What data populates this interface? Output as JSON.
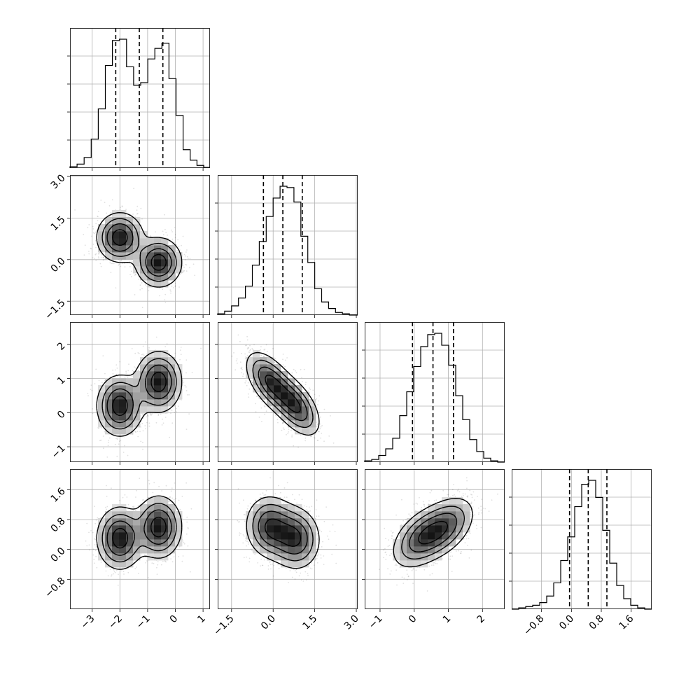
{
  "chart_data": {
    "type": "corner",
    "dimensions": 4,
    "ticks": {
      "d0": [
        "−3",
        "−2",
        "−1",
        "0",
        "1"
      ],
      "d1": [
        "−1.5",
        "0.0",
        "1.5",
        "3.0"
      ],
      "d2": [
        "−1",
        "0",
        "1",
        "2"
      ],
      "d3": [
        "−0.8",
        "0.0",
        "0.8",
        "1.6"
      ]
    },
    "tick_values": {
      "d0": [
        -3,
        -2,
        -1,
        0,
        1
      ],
      "d1": [
        -1.5,
        0.0,
        1.5,
        3.0
      ],
      "d2": [
        -1,
        0,
        1,
        2
      ],
      "d3": [
        -0.8,
        0.0,
        0.8,
        1.6
      ]
    },
    "ranges": {
      "d0": [
        -3.8,
        1.25
      ],
      "d1": [
        -2.0,
        3.05
      ],
      "d2": [
        -1.45,
        2.65
      ],
      "d3": [
        -1.6,
        2.15
      ]
    },
    "quantiles": {
      "d0": [
        -2.15,
        -1.3,
        -0.45
      ],
      "d1": [
        -0.35,
        0.35,
        1.05
      ],
      "d2": [
        -0.05,
        0.55,
        1.15
      ],
      "d3": [
        -0.05,
        0.45,
        0.95
      ]
    },
    "histograms": {
      "d0": {
        "edges": [
          -3.8,
          -3.545,
          -3.29,
          -3.035,
          -2.78,
          -2.525,
          -2.27,
          -2.015,
          -1.76,
          -1.505,
          -1.25,
          -0.995,
          -0.74,
          -0.485,
          -0.23,
          0.025,
          0.28,
          0.535,
          0.78,
          1.025,
          1.25
        ],
        "counts": [
          0.01,
          0.03,
          0.08,
          0.22,
          0.45,
          0.78,
          0.97,
          0.98,
          0.77,
          0.63,
          0.65,
          0.83,
          0.91,
          0.95,
          0.68,
          0.4,
          0.14,
          0.06,
          0.02,
          0.005
        ]
      },
      "d1": {
        "edges": [
          -2.0,
          -1.75,
          -1.5,
          -1.25,
          -1.0,
          -0.75,
          -0.5,
          -0.25,
          0.0,
          0.25,
          0.5,
          0.75,
          1.0,
          1.25,
          1.5,
          1.75,
          2.0,
          2.25,
          2.5,
          2.75,
          3.05
        ],
        "counts": [
          0.01,
          0.03,
          0.07,
          0.13,
          0.22,
          0.38,
          0.56,
          0.75,
          0.89,
          0.98,
          0.97,
          0.86,
          0.6,
          0.4,
          0.2,
          0.1,
          0.05,
          0.02,
          0.01,
          0.0
        ]
      },
      "d2": {
        "edges": [
          -1.45,
          -1.245,
          -1.04,
          -0.835,
          -0.63,
          -0.425,
          -0.22,
          -0.015,
          0.19,
          0.395,
          0.6,
          0.805,
          1.01,
          1.215,
          1.42,
          1.625,
          1.83,
          2.035,
          2.24,
          2.445,
          2.65
        ],
        "counts": [
          0.01,
          0.02,
          0.05,
          0.1,
          0.18,
          0.35,
          0.53,
          0.72,
          0.87,
          0.96,
          0.97,
          0.88,
          0.73,
          0.5,
          0.32,
          0.17,
          0.08,
          0.03,
          0.01,
          0.0
        ]
      },
      "d3": {
        "edges": [
          -1.6,
          -1.4125,
          -1.225,
          -1.0375,
          -0.85,
          -0.6625,
          -0.475,
          -0.2875,
          -0.1,
          0.0875,
          0.275,
          0.4625,
          0.65,
          0.8375,
          1.025,
          1.2125,
          1.4,
          1.5875,
          1.775,
          1.9625,
          2.15
        ],
        "counts": [
          0.0,
          0.01,
          0.02,
          0.03,
          0.05,
          0.1,
          0.2,
          0.37,
          0.55,
          0.78,
          0.95,
          0.98,
          0.85,
          0.6,
          0.35,
          0.18,
          0.08,
          0.03,
          0.01,
          0.0
        ]
      }
    },
    "components": [
      {
        "weight": 0.5,
        "mean": [
          -2.0,
          0.8,
          0.2,
          0.3
        ],
        "sd": [
          0.42,
          0.45,
          0.45,
          0.42
        ],
        "corr_12": 0.1,
        "corr_13": 0.05,
        "corr_23": 0.05
      },
      {
        "weight": 0.5,
        "mean": [
          -0.6,
          -0.1,
          0.9,
          0.6
        ],
        "sd": [
          0.42,
          0.45,
          0.45,
          0.42
        ],
        "corr_12": 0.1,
        "corr_13": 0.05,
        "corr_23": 0.05
      }
    ],
    "contour_levels": [
      "0.5σ",
      "1σ",
      "1.5σ",
      "2σ"
    ],
    "quantile_line_style": "dashed",
    "grid": true,
    "histogram_style": "step"
  }
}
